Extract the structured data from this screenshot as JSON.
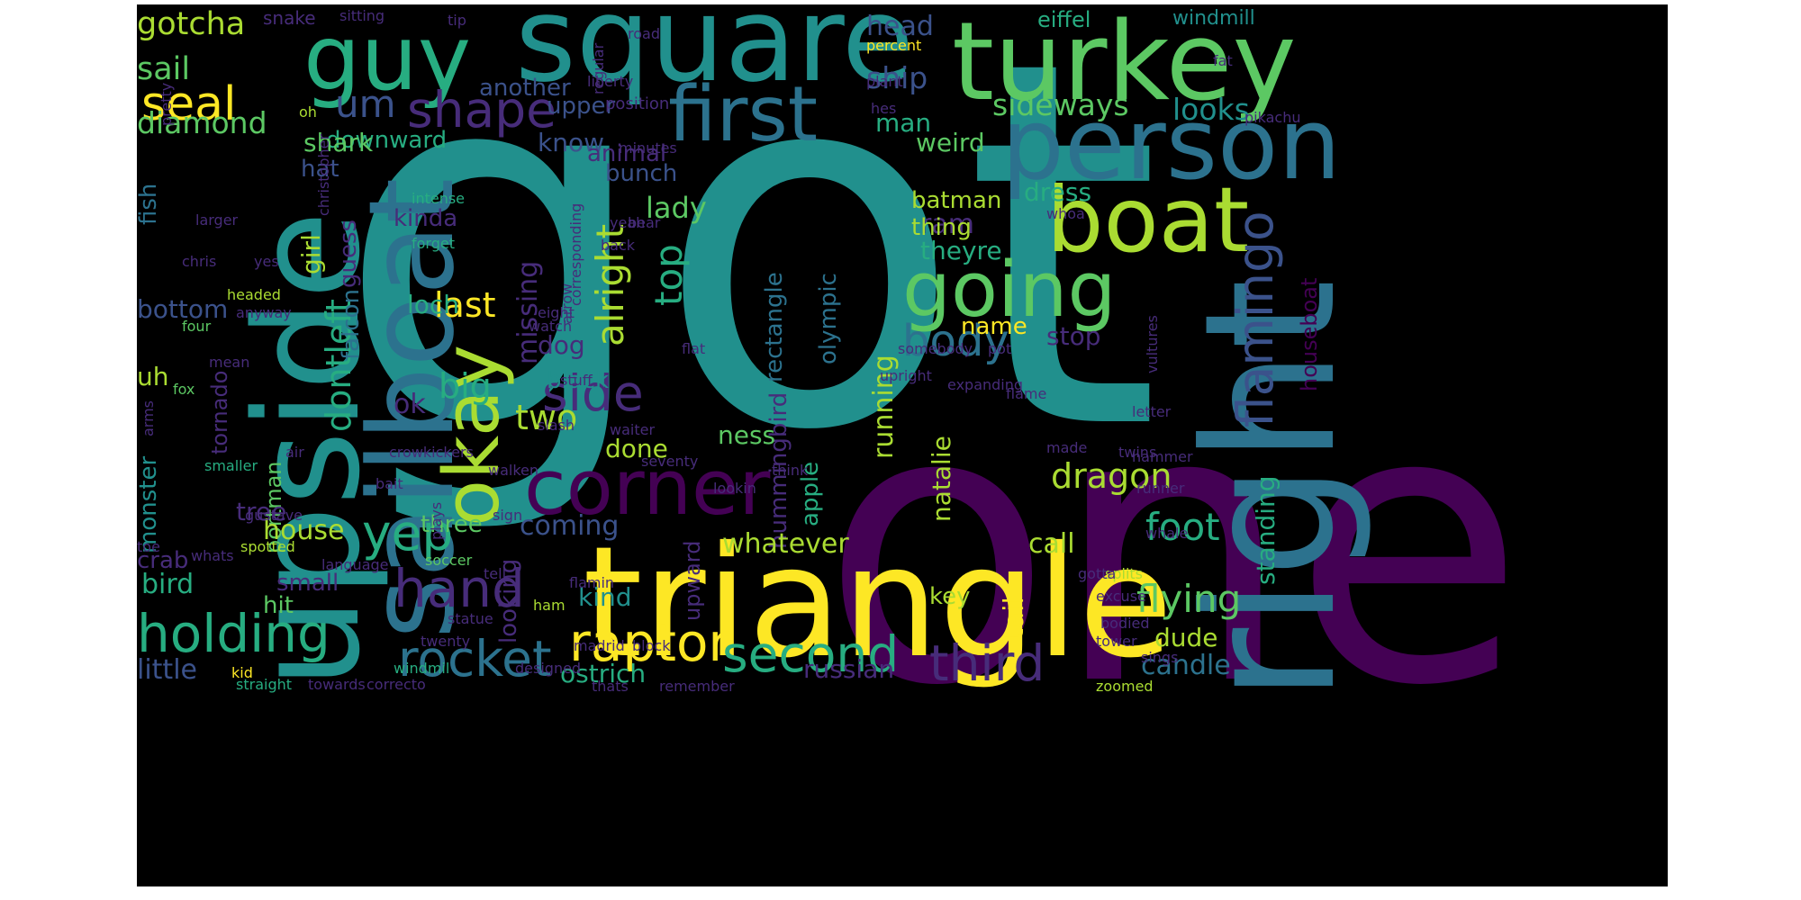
{
  "palette": {
    "purple": "#440154",
    "indigo": "#472c7a",
    "blue": "#3b528b",
    "steel": "#2c728e",
    "teal": "#21908d",
    "cyan": "#27ad81",
    "green": "#5cc863",
    "lime": "#aadc32",
    "yellow": "#fde725"
  },
  "words": [
    {
      "text": "got",
      "color": "teal",
      "vertical": false
    },
    {
      "text": "one",
      "color": "purple",
      "vertical": false
    },
    {
      "text": "triangle",
      "color": "yellow",
      "vertical": false
    },
    {
      "text": "right",
      "color": "steel",
      "vertical": true
    },
    {
      "text": "upside",
      "color": "teal",
      "vertical": true
    },
    {
      "text": "square",
      "color": "teal",
      "vertical": false
    },
    {
      "text": "turkey",
      "color": "green",
      "vertical": false
    },
    {
      "text": "person",
      "color": "steel",
      "vertical": false
    },
    {
      "text": "guy",
      "color": "cyan",
      "vertical": false
    },
    {
      "text": "sailboat",
      "color": "steel",
      "vertical": true
    },
    {
      "text": "boat",
      "color": "lime",
      "vertical": false
    },
    {
      "text": "first",
      "color": "steel",
      "vertical": false
    },
    {
      "text": "going",
      "color": "green",
      "vertical": false
    },
    {
      "text": "okay",
      "color": "lime",
      "vertical": true
    },
    {
      "text": "corner",
      "color": "purple",
      "vertical": false
    },
    {
      "text": "holding",
      "color": "cyan",
      "vertical": false
    },
    {
      "text": "raptor",
      "color": "yellow",
      "vertical": false
    },
    {
      "text": "second",
      "color": "cyan",
      "vertical": false
    },
    {
      "text": "third",
      "color": "indigo",
      "vertical": false
    },
    {
      "text": "rocket",
      "color": "steel",
      "vertical": false
    },
    {
      "text": "shape",
      "color": "indigo",
      "vertical": false
    },
    {
      "text": "hand",
      "color": "indigo",
      "vertical": false
    },
    {
      "text": "yep",
      "color": "cyan",
      "vertical": false
    },
    {
      "text": "side",
      "color": "indigo",
      "vertical": false
    },
    {
      "text": "body",
      "color": "steel",
      "vertical": false
    },
    {
      "text": "flamingo",
      "color": "blue",
      "vertical": true
    },
    {
      "text": "seal",
      "color": "yellow",
      "vertical": false
    },
    {
      "text": "um",
      "color": "blue",
      "vertical": false
    },
    {
      "text": "alright",
      "color": "lime",
      "vertical": true
    },
    {
      "text": "top",
      "color": "cyan",
      "vertical": true
    },
    {
      "text": "flying",
      "color": "green",
      "vertical": false
    },
    {
      "text": "foot",
      "color": "cyan",
      "vertical": false
    },
    {
      "text": "dragon",
      "color": "lime",
      "vertical": false
    },
    {
      "text": "last",
      "color": "yellow",
      "vertical": false
    },
    {
      "text": "big",
      "color": "cyan",
      "vertical": false
    },
    {
      "text": "two",
      "color": "lime",
      "vertical": false
    },
    {
      "text": "dontleft",
      "color": "cyan",
      "vertical": true
    },
    {
      "text": "gotcha",
      "color": "lime",
      "vertical": false
    },
    {
      "text": "sail",
      "color": "green",
      "vertical": false
    },
    {
      "text": "diamond",
      "color": "green",
      "vertical": false
    },
    {
      "text": "sideways",
      "color": "green",
      "vertical": false
    },
    {
      "text": "looks",
      "color": "teal",
      "vertical": false
    },
    {
      "text": "ship",
      "color": "blue",
      "vertical": false
    },
    {
      "text": "head",
      "color": "blue",
      "vertical": false
    },
    {
      "text": "man",
      "color": "cyan",
      "vertical": false
    },
    {
      "text": "weird",
      "color": "green",
      "vertical": false
    },
    {
      "text": "know",
      "color": "blue",
      "vertical": false
    },
    {
      "text": "another",
      "color": "blue",
      "vertical": false
    },
    {
      "text": "upper",
      "color": "blue",
      "vertical": false
    },
    {
      "text": "downward",
      "color": "cyan",
      "vertical": false
    },
    {
      "text": "shark",
      "color": "green",
      "vertical": false
    },
    {
      "text": "hat",
      "color": "blue",
      "vertical": false
    },
    {
      "text": "animal",
      "color": "indigo",
      "vertical": false
    },
    {
      "text": "bunch",
      "color": "blue",
      "vertical": false
    },
    {
      "text": "lady",
      "color": "green",
      "vertical": false
    },
    {
      "text": "kinda",
      "color": "indigo",
      "vertical": false
    },
    {
      "text": "missing",
      "color": "indigo",
      "vertical": true
    },
    {
      "text": "girl",
      "color": "lime",
      "vertical": true
    },
    {
      "text": "guess",
      "color": "indigo",
      "vertical": true
    },
    {
      "text": "ram",
      "color": "indigo",
      "vertical": false
    },
    {
      "text": "theyre",
      "color": "cyan",
      "vertical": false
    },
    {
      "text": "batman",
      "color": "lime",
      "vertical": false
    },
    {
      "text": "thing",
      "color": "lime",
      "vertical": false
    },
    {
      "text": "dress",
      "color": "cyan",
      "vertical": false
    },
    {
      "text": "bottom",
      "color": "blue",
      "vertical": false
    },
    {
      "text": "loch",
      "color": "cyan",
      "vertical": false
    },
    {
      "text": "uh",
      "color": "lime",
      "vertical": false
    },
    {
      "text": "ok",
      "color": "indigo",
      "vertical": false
    },
    {
      "text": "dog",
      "color": "indigo",
      "vertical": false
    },
    {
      "text": "black",
      "color": "teal",
      "vertical": false
    },
    {
      "text": "name",
      "color": "yellow",
      "vertical": false
    },
    {
      "text": "stop",
      "color": "indigo",
      "vertical": false
    },
    {
      "text": "houseboat",
      "color": "purple",
      "vertical": true
    },
    {
      "text": "standing",
      "color": "cyan",
      "vertical": true
    },
    {
      "text": "fish",
      "color": "steel",
      "vertical": true
    },
    {
      "text": "falcon",
      "color": "steel",
      "vertical": true
    },
    {
      "text": "rectangle",
      "color": "steel",
      "vertical": true
    },
    {
      "text": "olympic",
      "color": "steel",
      "vertical": true
    },
    {
      "text": "running",
      "color": "lime",
      "vertical": true
    },
    {
      "text": "natalie",
      "color": "lime",
      "vertical": true
    },
    {
      "text": "hummingbird",
      "color": "indigo",
      "vertical": true
    },
    {
      "text": "ness",
      "color": "green",
      "vertical": false
    },
    {
      "text": "done",
      "color": "lime",
      "vertical": false
    },
    {
      "text": "tornado",
      "color": "indigo",
      "vertical": true
    },
    {
      "text": "monster",
      "color": "teal",
      "vertical": true
    },
    {
      "text": "portman",
      "color": "green",
      "vertical": true
    },
    {
      "text": "apple",
      "color": "cyan",
      "vertical": true
    },
    {
      "text": "upward",
      "color": "indigo",
      "vertical": true
    },
    {
      "text": "looking",
      "color": "indigo",
      "vertical": true
    },
    {
      "text": "tree",
      "color": "indigo",
      "vertical": false
    },
    {
      "text": "house",
      "color": "lime",
      "vertical": false
    },
    {
      "text": "three",
      "color": "green",
      "vertical": false
    },
    {
      "text": "coming",
      "color": "blue",
      "vertical": false
    },
    {
      "text": "whatever",
      "color": "lime",
      "vertical": false
    },
    {
      "text": "call",
      "color": "lime",
      "vertical": false
    },
    {
      "text": "crab",
      "color": "indigo",
      "vertical": false
    },
    {
      "text": "small",
      "color": "indigo",
      "vertical": false
    },
    {
      "text": "bird",
      "color": "cyan",
      "vertical": false
    },
    {
      "text": "hit",
      "color": "green",
      "vertical": false
    },
    {
      "text": "kind",
      "color": "teal",
      "vertical": false
    },
    {
      "text": "key",
      "color": "lime",
      "vertical": false
    },
    {
      "text": "tail",
      "color": "yellow",
      "vertical": true
    },
    {
      "text": "dude",
      "color": "lime",
      "vertical": false
    },
    {
      "text": "candle",
      "color": "steel",
      "vertical": false
    },
    {
      "text": "russian",
      "color": "indigo",
      "vertical": false
    },
    {
      "text": "ostrich",
      "color": "cyan",
      "vertical": false
    },
    {
      "text": "little",
      "color": "blue",
      "vertical": false
    },
    {
      "text": "snake",
      "color": "indigo",
      "vertical": false
    },
    {
      "text": "eiffel",
      "color": "cyan",
      "vertical": false
    },
    {
      "text": "windmill",
      "color": "teal",
      "vertical": false
    },
    {
      "text": "sitting",
      "color": "indigo",
      "vertical": false
    },
    {
      "text": "tip",
      "color": "indigo",
      "vertical": false
    },
    {
      "text": "road",
      "color": "indigo",
      "vertical": false
    },
    {
      "text": "regular",
      "color": "indigo",
      "vertical": true
    },
    {
      "text": "percent",
      "color": "yellow",
      "vertical": false
    },
    {
      "text": "fat",
      "color": "indigo",
      "vertical": false
    },
    {
      "text": "liberty",
      "color": "indigo",
      "vertical": false
    },
    {
      "text": "position",
      "color": "indigo",
      "vertical": false
    },
    {
      "text": "hes",
      "color": "indigo",
      "vertical": false
    },
    {
      "text": "plant",
      "color": "indigo",
      "vertical": false
    },
    {
      "text": "pretty",
      "color": "indigo",
      "vertical": true
    },
    {
      "text": "oh",
      "color": "lime",
      "vertical": false
    },
    {
      "text": "minutes",
      "color": "indigo",
      "vertical": false
    },
    {
      "text": "christopher",
      "color": "indigo",
      "vertical": true
    },
    {
      "text": "pikachu",
      "color": "indigo",
      "vertical": false
    },
    {
      "text": "intense",
      "color": "cyan",
      "vertical": false
    },
    {
      "text": "forget",
      "color": "cyan",
      "vertical": false
    },
    {
      "text": "larger",
      "color": "indigo",
      "vertical": false
    },
    {
      "text": "chris",
      "color": "indigo",
      "vertical": false
    },
    {
      "text": "yes",
      "color": "indigo",
      "vertical": false
    },
    {
      "text": "headed",
      "color": "lime",
      "vertical": false
    },
    {
      "text": "anyway",
      "color": "indigo",
      "vertical": false
    },
    {
      "text": "four",
      "color": "green",
      "vertical": false
    },
    {
      "text": "mean",
      "color": "indigo",
      "vertical": false
    },
    {
      "text": "fox",
      "color": "green",
      "vertical": false
    },
    {
      "text": "arms",
      "color": "indigo",
      "vertical": true
    },
    {
      "text": "smaller",
      "color": "cyan",
      "vertical": false
    },
    {
      "text": "gustave",
      "color": "indigo",
      "vertical": false
    },
    {
      "text": "toe",
      "color": "indigo",
      "vertical": false
    },
    {
      "text": "whats",
      "color": "indigo",
      "vertical": false
    },
    {
      "text": "spotted",
      "color": "lime",
      "vertical": false
    },
    {
      "text": "kid",
      "color": "yellow",
      "vertical": false
    },
    {
      "text": "straight",
      "color": "cyan",
      "vertical": false
    },
    {
      "text": "towards",
      "color": "indigo",
      "vertical": false
    },
    {
      "text": "correcto",
      "color": "indigo",
      "vertical": false
    },
    {
      "text": "windmil",
      "color": "cyan",
      "vertical": false
    },
    {
      "text": "designed",
      "color": "indigo",
      "vertical": false
    },
    {
      "text": "thats",
      "color": "indigo",
      "vertical": false
    },
    {
      "text": "remember",
      "color": "indigo",
      "vertical": false
    },
    {
      "text": "zoomed",
      "color": "lime",
      "vertical": false
    },
    {
      "text": "sings",
      "color": "indigo",
      "vertical": false
    },
    {
      "text": "madrid",
      "color": "indigo",
      "vertical": false
    },
    {
      "text": "block",
      "color": "indigo",
      "vertical": false
    },
    {
      "text": "twenty",
      "color": "indigo",
      "vertical": false
    },
    {
      "text": "statue",
      "color": "indigo",
      "vertical": false
    },
    {
      "text": "ham",
      "color": "lime",
      "vertical": false
    },
    {
      "text": "flamin",
      "color": "indigo",
      "vertical": false
    },
    {
      "text": "tell",
      "color": "indigo",
      "vertical": false
    },
    {
      "text": "plays",
      "color": "indigo",
      "vertical": true
    },
    {
      "text": "soccer",
      "color": "green",
      "vertical": false
    },
    {
      "text": "language",
      "color": "indigo",
      "vertical": false
    },
    {
      "text": "bait",
      "color": "indigo",
      "vertical": false
    },
    {
      "text": "air",
      "color": "indigo",
      "vertical": false
    },
    {
      "text": "crowkickers",
      "color": "indigo",
      "vertical": false
    },
    {
      "text": "sign",
      "color": "indigo",
      "vertical": false
    },
    {
      "text": "slash",
      "color": "indigo",
      "vertical": false
    },
    {
      "text": "waiter",
      "color": "indigo",
      "vertical": false
    },
    {
      "text": "seventy",
      "color": "indigo",
      "vertical": false
    },
    {
      "text": "think",
      "color": "indigo",
      "vertical": false
    },
    {
      "text": "lookin",
      "color": "indigo",
      "vertical": false
    },
    {
      "text": "walken",
      "color": "indigo",
      "vertical": false
    },
    {
      "text": "watch",
      "color": "indigo",
      "vertical": false
    },
    {
      "text": "stuff",
      "color": "indigo",
      "vertical": false
    },
    {
      "text": "expanding",
      "color": "indigo",
      "vertical": false
    },
    {
      "text": "upright",
      "color": "indigo",
      "vertical": false
    },
    {
      "text": "flame",
      "color": "indigo",
      "vertical": false
    },
    {
      "text": "pot",
      "color": "indigo",
      "vertical": false
    },
    {
      "text": "somebody",
      "color": "indigo",
      "vertical": false
    },
    {
      "text": "eight",
      "color": "indigo",
      "vertical": false
    },
    {
      "text": "arrow",
      "color": "indigo",
      "vertical": true
    },
    {
      "text": "flat",
      "color": "indigo",
      "vertical": false
    },
    {
      "text": "corresponding",
      "color": "indigo",
      "vertical": true
    },
    {
      "text": "yeah",
      "color": "indigo",
      "vertical": false
    },
    {
      "text": "back",
      "color": "indigo",
      "vertical": false
    },
    {
      "text": "bear",
      "color": "indigo",
      "vertical": false
    },
    {
      "text": "whoa",
      "color": "indigo",
      "vertical": false
    },
    {
      "text": "vultures",
      "color": "indigo",
      "vertical": true
    },
    {
      "text": "twins",
      "color": "indigo",
      "vertical": false
    },
    {
      "text": "letter",
      "color": "indigo",
      "vertical": false
    },
    {
      "text": "hammer",
      "color": "indigo",
      "vertical": false
    },
    {
      "text": "runner",
      "color": "indigo",
      "vertical": false
    },
    {
      "text": "made",
      "color": "indigo",
      "vertical": false
    },
    {
      "text": "whale",
      "color": "indigo",
      "vertical": false
    },
    {
      "text": "tower",
      "color": "indigo",
      "vertical": false
    },
    {
      "text": "splits",
      "color": "lime",
      "vertical": false
    },
    {
      "text": "excuse",
      "color": "indigo",
      "vertical": false
    },
    {
      "text": "bodied",
      "color": "indigo",
      "vertical": false
    },
    {
      "text": "gotta",
      "color": "indigo",
      "vertical": false
    }
  ]
}
